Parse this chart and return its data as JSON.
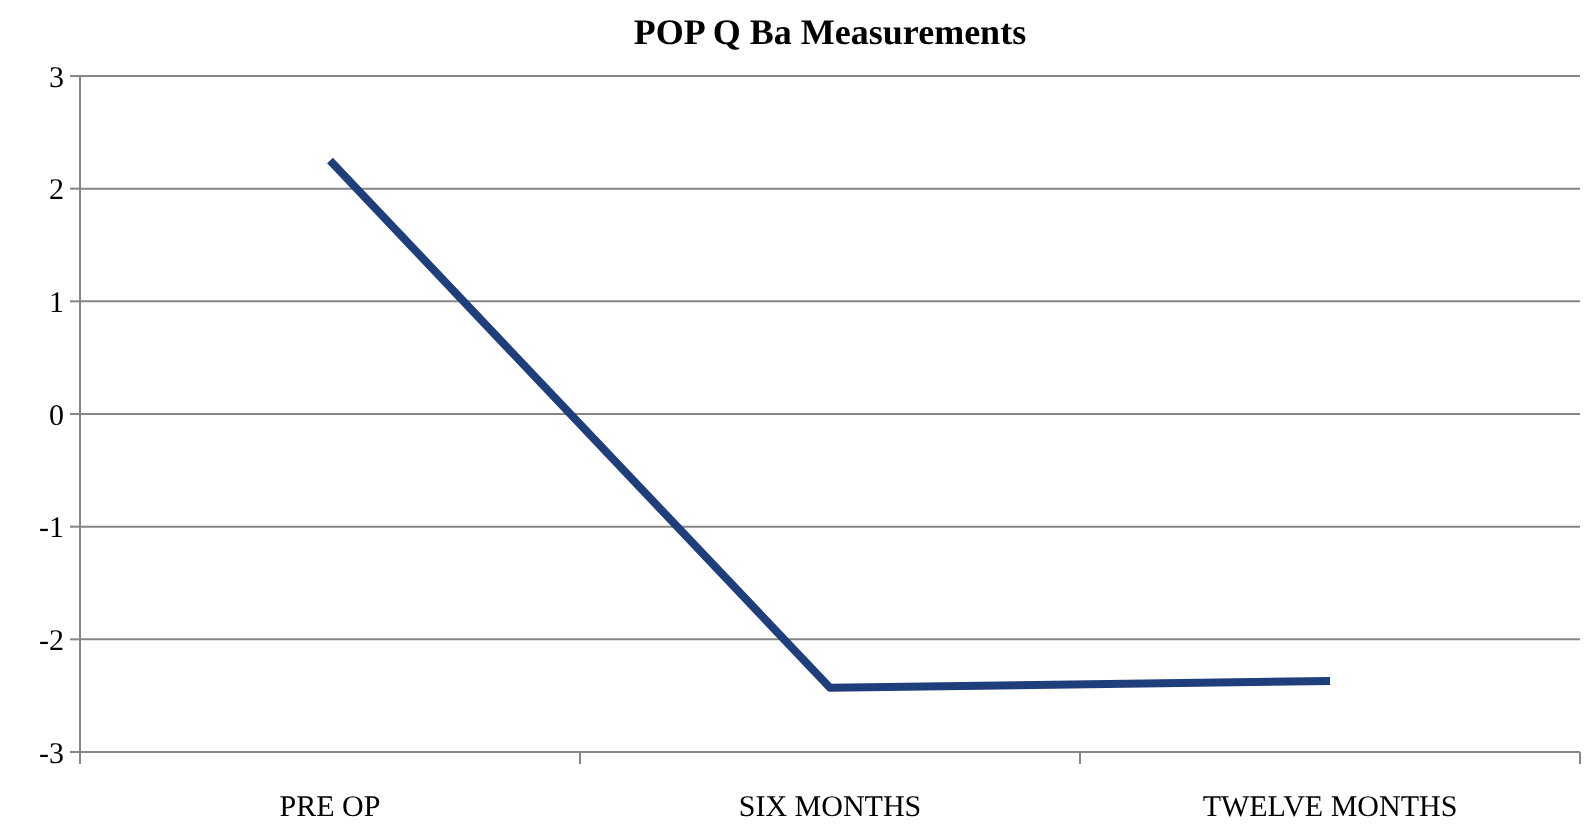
{
  "chart_data": {
    "type": "line",
    "title": "POP Q Ba Measurements",
    "categories": [
      "PRE OP",
      "SIX MONTHS",
      "TWELVE MONTHS"
    ],
    "series": [
      {
        "color": "#1f3e7c",
        "values": [
          2.25,
          -2.43,
          -2.37
        ]
      }
    ],
    "ylim": [
      -3,
      3
    ],
    "yticks": [
      -3,
      -2,
      -1,
      0,
      1,
      2,
      3
    ],
    "grid": "y",
    "marker": "none",
    "line_style": "solid"
  }
}
